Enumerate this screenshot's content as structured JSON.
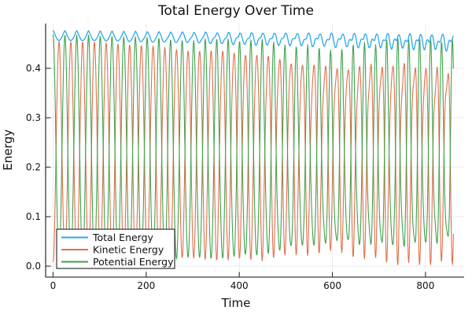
{
  "figure": {
    "title": "Total Energy Over Time",
    "xlabel": "Time",
    "ylabel": "Energy"
  },
  "chart_data": {
    "type": "line",
    "title": "Total Energy Over Time",
    "xlabel": "Time",
    "ylabel": "Energy",
    "xlim": [
      -16,
      883
    ],
    "ylim": [
      -0.0222,
      0.4905
    ],
    "xticks": [
      0,
      200,
      400,
      600,
      800
    ],
    "x_tick_labels": [
      "0",
      "200",
      "400",
      "600",
      "800"
    ],
    "yticks": [
      0.0,
      0.1,
      0.2,
      0.3,
      0.4
    ],
    "y_tick_labels": [
      "0.0",
      "0.1",
      "0.2",
      "0.3",
      "0.4"
    ],
    "grid": true,
    "legend": {
      "position": "bottom-left",
      "background": "#ffffff",
      "border_color": "#333333",
      "entries": [
        "Total Energy",
        "Kinetic Energy",
        "Potential Energy"
      ]
    },
    "time_range": {
      "start": 0,
      "end": 860,
      "step": 1
    },
    "series": [
      {
        "name": "Total Energy",
        "color": "#29A8EC",
        "role": "total",
        "approx_mean": 0.463
      },
      {
        "name": "Kinetic Energy",
        "color": "#E0704C",
        "role": "kinetic",
        "approx_mean": 0.235
      },
      {
        "name": "Potential Energy",
        "color": "#3EA24D",
        "role": "potential",
        "approx_mean": 0.228
      }
    ],
    "oscillation": {
      "period_start": 25.5,
      "chirp": 9e-05,
      "dip_exponent": 0.62,
      "anchors_t": [
        0,
        100,
        200,
        300,
        400,
        500,
        600,
        700,
        800,
        860
      ],
      "kinetic_max": [
        0.455,
        0.452,
        0.45,
        0.447,
        0.442,
        0.436,
        0.43,
        0.428,
        0.424,
        0.42
      ],
      "kinetic_min": [
        0.008,
        0.01,
        0.015,
        0.022,
        0.032,
        0.045,
        0.058,
        0.055,
        0.05,
        0.048
      ],
      "second_harmonic": [
        0.0,
        0.0,
        0.004,
        0.01,
        0.018,
        0.028,
        0.038,
        0.044,
        0.048,
        0.05
      ],
      "total_max": [
        0.4765,
        0.476,
        0.475,
        0.4742,
        0.4732,
        0.4722,
        0.4712,
        0.47,
        0.4685,
        0.467
      ],
      "total_dip": [
        0.02,
        0.02,
        0.021,
        0.021,
        0.022,
        0.022,
        0.023,
        0.023,
        0.024,
        0.024
      ],
      "total_harmonic": [
        0.0,
        0.0,
        0.001,
        0.002,
        0.004,
        0.005,
        0.006,
        0.007,
        0.008,
        0.008
      ]
    },
    "style": {
      "axis_color": "#3A3A3A",
      "grid_color": "rgba(0,0,0,0.08)",
      "text_color": "#111111",
      "background": "#ffffff"
    }
  }
}
